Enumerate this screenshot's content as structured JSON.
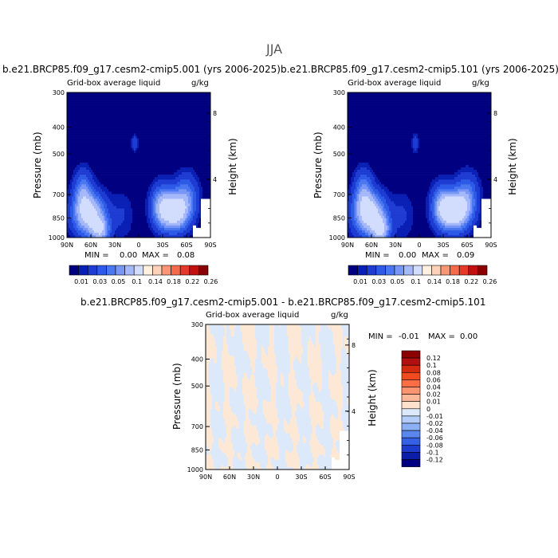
{
  "season": "JJA",
  "left_panel": {
    "case_title": "b.e21.BRCP85.f09_g17.cesm2-cmip5.001 (yrs 2006-2025)",
    "field_label": "Grid-box average liquid",
    "units": "g/kg",
    "ylabel": "Pressure (mb)",
    "ylabel_right": "Height (km)",
    "min_label": "MIN =",
    "min_value": "0.00",
    "max_label": "MAX =",
    "max_value": "0.08"
  },
  "right_panel": {
    "case_title": "b.e21.BRCP85.f09_g17.cesm2-cmip5.101 (yrs 2006-2025)",
    "field_label": "Grid-box average liquid",
    "units": "g/kg",
    "ylabel": "Pressure (mb)",
    "ylabel_right": "Height (km)",
    "min_label": "MIN =",
    "min_value": "0.00",
    "max_label": "MAX =",
    "max_value": "0.09"
  },
  "diff_panel": {
    "case_title": "b.e21.BRCP85.f09_g17.cesm2-cmip5.001 - b.e21.BRCP85.f09_g17.cesm2-cmip5.101",
    "field_label": "Grid-box average liquid",
    "units": "g/kg",
    "ylabel": "Pressure (mb)",
    "ylabel_right": "Height (km)",
    "min_label": "MIN =",
    "min_value": "-0.01",
    "max_label": "MAX =",
    "max_value": "0.00"
  },
  "chart_data": [
    {
      "type": "heatmap",
      "title": "b.e21.BRCP85.f09_g17.cesm2-cmip5.001 (yrs 2006-2025)",
      "x_ticks": [
        "90N",
        "60N",
        "30N",
        "0",
        "30S",
        "60S",
        "90S"
      ],
      "y_ticks": [
        "300",
        "400",
        "500",
        "700",
        "850",
        "1000"
      ],
      "y_right_ticks": [
        "8",
        "4"
      ],
      "ylim": [
        1000,
        300
      ],
      "y_scale": "log",
      "ylabel": "Pressure (mb)",
      "ylabel_right": "Height (km)",
      "min": 0.0,
      "max": 0.08,
      "levels": [
        "0.01",
        "0.03",
        "0.05",
        "0.1",
        "0.14",
        "0.18",
        "0.22",
        "0.26"
      ],
      "colors": [
        "#000080",
        "#0a1fb4",
        "#1e3cd2",
        "#2d5ae6",
        "#4b78f0",
        "#7896f5",
        "#a5b9fa",
        "#d2dcfd",
        "#fff0e0",
        "#fdd2b9",
        "#fbb496",
        "#f99673",
        "#f56a4a",
        "#e53a28",
        "#c01010",
        "#800000"
      ],
      "colorbar_colors": [
        "#000080",
        "#0a1fb4",
        "#1e3cd2",
        "#2d5ae6",
        "#4b78f0",
        "#7896f5",
        "#a5b9fa",
        "#d2dcfd",
        "#fff0e0",
        "#fdd2b9",
        "#f99673",
        "#f56a4a",
        "#e53a28",
        "#c01010",
        "#8b0000"
      ]
    },
    {
      "type": "heatmap",
      "title": "b.e21.BRCP85.f09_g17.cesm2-cmip5.101 (yrs 2006-2025)",
      "x_ticks": [
        "90N",
        "60N",
        "30N",
        "0",
        "30S",
        "60S",
        "90S"
      ],
      "y_ticks": [
        "300",
        "400",
        "500",
        "700",
        "850",
        "1000"
      ],
      "y_right_ticks": [
        "8",
        "4"
      ],
      "ylim": [
        1000,
        300
      ],
      "y_scale": "log",
      "ylabel": "Pressure (mb)",
      "ylabel_right": "Height (km)",
      "min": 0.0,
      "max": 0.09,
      "levels": [
        "0.01",
        "0.03",
        "0.05",
        "0.1",
        "0.14",
        "0.18",
        "0.22",
        "0.26"
      ]
    },
    {
      "type": "heatmap",
      "title": "b.e21.BRCP85.f09_g17.cesm2-cmip5.001 - b.e21.BRCP85.f09_g17.cesm2-cmip5.101",
      "x_ticks": [
        "90N",
        "60N",
        "30N",
        "0",
        "30S",
        "60S",
        "90S"
      ],
      "y_ticks": [
        "300",
        "400",
        "500",
        "700",
        "850",
        "1000"
      ],
      "y_right_ticks": [
        "8",
        "4"
      ],
      "ylim": [
        1000,
        300
      ],
      "y_scale": "log",
      "ylabel": "Pressure (mb)",
      "ylabel_right": "Height (km)",
      "min": -0.01,
      "max": 0.0,
      "levels": [
        "0.12",
        "0.1",
        "0.08",
        "0.06",
        "0.04",
        "0.02",
        "0.01",
        "0",
        "-0.01",
        "-0.02",
        "-0.04",
        "-0.06",
        "-0.08",
        "-0.1",
        "-0.12"
      ],
      "colors": [
        "#8b0000",
        "#b01010",
        "#d42a10",
        "#f04a1e",
        "#fa6e46",
        "#fc9470",
        "#fdb89a",
        "#fde1cc",
        "#dbe9fb",
        "#b4cdf8",
        "#8cb0f5",
        "#5a87ee",
        "#3560e4",
        "#1e3ccc",
        "#0c1ea8",
        "#000080"
      ],
      "dominant_colors": {
        "positive": "#fde8d6",
        "negative": "#dbe9fb"
      }
    }
  ]
}
